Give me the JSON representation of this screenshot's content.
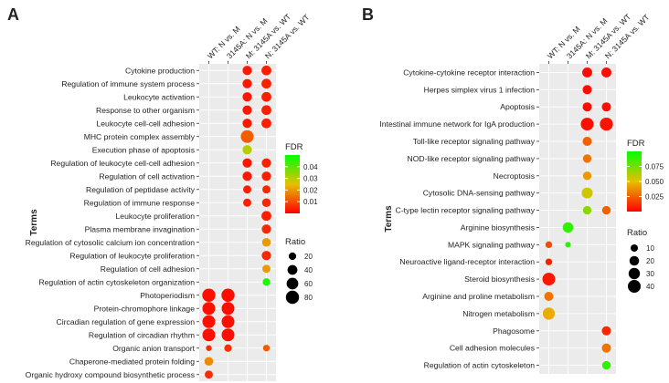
{
  "chart_data": [
    {
      "type": "scatter",
      "panel_label": "A",
      "ylabel": "Terms",
      "columns": [
        "WT: N vs. M",
        "3145A: N vs. M",
        "M: 3145A vs. WT",
        "N: 3145A vs. WT"
      ],
      "rows": [
        "Cytokine production",
        "Regulation of immune system process",
        "Leukocyte activation",
        "Response to other organism",
        "Leukocyte cell-cell adhesion",
        "MHC protein complex assembly",
        "Execution phase of apoptosis",
        "Regulation of leukocyte cell-cell adhesion",
        "Regulation of cell activation",
        "Regulation of peptidase activity",
        "Regulation of immune response",
        "Leukocyte proliferation",
        "Plasma membrane invagination",
        "Regulation of cytosolic calcium ion concentration",
        "Regulation of leukocyte proliferation",
        "Regulation of cell adhesion",
        "Regulation of actin cytoskeleton organization",
        "Photoperiodism",
        "Protein-chromophore linkage",
        "Circadian regulation of gene expression",
        "Regulation of circadian rhythm",
        "Organic anion transport",
        "Chaperone-mediated protein folding",
        "Organic hydroxy compound biosynthetic process"
      ],
      "points": [
        {
          "row": 0,
          "col": 2,
          "ratio": 35,
          "fdr": 0.003
        },
        {
          "row": 0,
          "col": 3,
          "ratio": 40,
          "fdr": 0.004
        },
        {
          "row": 1,
          "col": 2,
          "ratio": 35,
          "fdr": 0.003
        },
        {
          "row": 1,
          "col": 3,
          "ratio": 40,
          "fdr": 0.004
        },
        {
          "row": 2,
          "col": 2,
          "ratio": 35,
          "fdr": 0.003
        },
        {
          "row": 2,
          "col": 3,
          "ratio": 40,
          "fdr": 0.004
        },
        {
          "row": 3,
          "col": 2,
          "ratio": 35,
          "fdr": 0.003
        },
        {
          "row": 3,
          "col": 3,
          "ratio": 40,
          "fdr": 0.004
        },
        {
          "row": 4,
          "col": 2,
          "ratio": 35,
          "fdr": 0.003
        },
        {
          "row": 4,
          "col": 3,
          "ratio": 40,
          "fdr": 0.004
        },
        {
          "row": 5,
          "col": 2,
          "ratio": 75,
          "fdr": 0.012
        },
        {
          "row": 6,
          "col": 2,
          "ratio": 35,
          "fdr": 0.03
        },
        {
          "row": 7,
          "col": 2,
          "ratio": 35,
          "fdr": 0.003
        },
        {
          "row": 7,
          "col": 3,
          "ratio": 35,
          "fdr": 0.004
        },
        {
          "row": 8,
          "col": 2,
          "ratio": 35,
          "fdr": 0.003
        },
        {
          "row": 8,
          "col": 3,
          "ratio": 35,
          "fdr": 0.004
        },
        {
          "row": 9,
          "col": 2,
          "ratio": 25,
          "fdr": 0.004
        },
        {
          "row": 9,
          "col": 3,
          "ratio": 25,
          "fdr": 0.005
        },
        {
          "row": 10,
          "col": 2,
          "ratio": 25,
          "fdr": 0.004
        },
        {
          "row": 10,
          "col": 3,
          "ratio": 30,
          "fdr": 0.005
        },
        {
          "row": 11,
          "col": 3,
          "ratio": 40,
          "fdr": 0.004
        },
        {
          "row": 12,
          "col": 3,
          "ratio": 35,
          "fdr": 0.005
        },
        {
          "row": 13,
          "col": 3,
          "ratio": 30,
          "fdr": 0.02
        },
        {
          "row": 14,
          "col": 3,
          "ratio": 35,
          "fdr": 0.005
        },
        {
          "row": 15,
          "col": 3,
          "ratio": 25,
          "fdr": 0.02
        },
        {
          "row": 16,
          "col": 3,
          "ratio": 20,
          "fdr": 0.047
        },
        {
          "row": 17,
          "col": 0,
          "ratio": 80,
          "fdr": 0.002
        },
        {
          "row": 17,
          "col": 1,
          "ratio": 80,
          "fdr": 0.002
        },
        {
          "row": 18,
          "col": 0,
          "ratio": 75,
          "fdr": 0.002
        },
        {
          "row": 18,
          "col": 1,
          "ratio": 75,
          "fdr": 0.002
        },
        {
          "row": 19,
          "col": 0,
          "ratio": 75,
          "fdr": 0.002
        },
        {
          "row": 19,
          "col": 1,
          "ratio": 75,
          "fdr": 0.002
        },
        {
          "row": 20,
          "col": 0,
          "ratio": 75,
          "fdr": 0.002
        },
        {
          "row": 20,
          "col": 1,
          "ratio": 75,
          "fdr": 0.002
        },
        {
          "row": 21,
          "col": 0,
          "ratio": 10,
          "fdr": 0.006
        },
        {
          "row": 21,
          "col": 1,
          "ratio": 20,
          "fdr": 0.006
        },
        {
          "row": 21,
          "col": 3,
          "ratio": 15,
          "fdr": 0.012
        },
        {
          "row": 22,
          "col": 0,
          "ratio": 30,
          "fdr": 0.018
        },
        {
          "row": 23,
          "col": 0,
          "ratio": 25,
          "fdr": 0.006
        }
      ],
      "legend_fdr": {
        "title": "FDR",
        "ticks": [
          0.01,
          0.02,
          0.03,
          0.04
        ],
        "tick_labels": [
          "0.01",
          "0.02",
          "0.03",
          "0.04"
        ],
        "range": [
          0,
          0.05
        ]
      },
      "legend_ratio": {
        "title": "Ratio",
        "values": [
          20,
          40,
          60,
          80
        ],
        "labels": [
          "20",
          "40",
          "60",
          "80"
        ]
      },
      "colors": {
        "low": "#ff0000",
        "mid": "#e5c000",
        "high": "#00ff00"
      }
    },
    {
      "type": "scatter",
      "panel_label": "B",
      "ylabel": "Terms",
      "columns": [
        "WT: N vs. M",
        "3145A: N vs. M",
        "M: 3145A vs. WT",
        "N: 3145A vs. WT"
      ],
      "rows": [
        "Cytokine-cytokine receptor interaction",
        "Herpes simplex virus 1 infection",
        "Apoptosis",
        "Intestinal immune network for IgA production",
        "Toll-like receptor signaling pathway",
        "NOD-like receptor signaling pathway",
        "Necroptosis",
        "Cytosolic DNA-sensing pathway",
        "C-type lectin receptor signaling pathway",
        "Arginine biosynthesis",
        "MAPK signaling pathway",
        "Neuroactive ligand-receptor interaction",
        "Steroid biosynthesis",
        "Arginine and proline metabolism",
        "Nitrogen metabolism",
        "Phagosome",
        "Cell adhesion molecules",
        "Regulation of actin cytoskeleton"
      ],
      "points": [
        {
          "row": 0,
          "col": 2,
          "ratio": 22,
          "fdr": 0.003
        },
        {
          "row": 0,
          "col": 3,
          "ratio": 22,
          "fdr": 0.003
        },
        {
          "row": 1,
          "col": 2,
          "ratio": 18,
          "fdr": 0.004
        },
        {
          "row": 2,
          "col": 2,
          "ratio": 18,
          "fdr": 0.003
        },
        {
          "row": 2,
          "col": 3,
          "ratio": 18,
          "fdr": 0.004
        },
        {
          "row": 3,
          "col": 2,
          "ratio": 40,
          "fdr": 0.004
        },
        {
          "row": 3,
          "col": 3,
          "ratio": 42,
          "fdr": 0.005
        },
        {
          "row": 4,
          "col": 2,
          "ratio": 18,
          "fdr": 0.025
        },
        {
          "row": 5,
          "col": 2,
          "ratio": 15,
          "fdr": 0.03
        },
        {
          "row": 6,
          "col": 2,
          "ratio": 15,
          "fdr": 0.04
        },
        {
          "row": 7,
          "col": 2,
          "ratio": 28,
          "fdr": 0.055
        },
        {
          "row": 8,
          "col": 2,
          "ratio": 15,
          "fdr": 0.07
        },
        {
          "row": 8,
          "col": 3,
          "ratio": 15,
          "fdr": 0.025
        },
        {
          "row": 9,
          "col": 1,
          "ratio": 25,
          "fdr": 0.09
        },
        {
          "row": 10,
          "col": 0,
          "ratio": 8,
          "fdr": 0.02
        },
        {
          "row": 10,
          "col": 1,
          "ratio": 5,
          "fdr": 0.09
        },
        {
          "row": 11,
          "col": 0,
          "ratio": 8,
          "fdr": 0.008
        },
        {
          "row": 12,
          "col": 0,
          "ratio": 40,
          "fdr": 0.006
        },
        {
          "row": 13,
          "col": 0,
          "ratio": 18,
          "fdr": 0.03
        },
        {
          "row": 14,
          "col": 0,
          "ratio": 35,
          "fdr": 0.045
        },
        {
          "row": 15,
          "col": 3,
          "ratio": 18,
          "fdr": 0.01
        },
        {
          "row": 16,
          "col": 3,
          "ratio": 18,
          "fdr": 0.03
        },
        {
          "row": 17,
          "col": 3,
          "ratio": 15,
          "fdr": 0.09
        }
      ],
      "legend_fdr": {
        "title": "FDR",
        "ticks": [
          0.025,
          0.05,
          0.075
        ],
        "tick_labels": [
          "0.025",
          "0.050",
          "0.075"
        ],
        "range": [
          0,
          0.1
        ]
      },
      "legend_ratio": {
        "title": "Ratio",
        "values": [
          10,
          20,
          30,
          40
        ],
        "labels": [
          "10",
          "20",
          "30",
          "40"
        ]
      },
      "colors": {
        "low": "#ff0000",
        "mid": "#e5c000",
        "high": "#00ff00"
      }
    }
  ]
}
